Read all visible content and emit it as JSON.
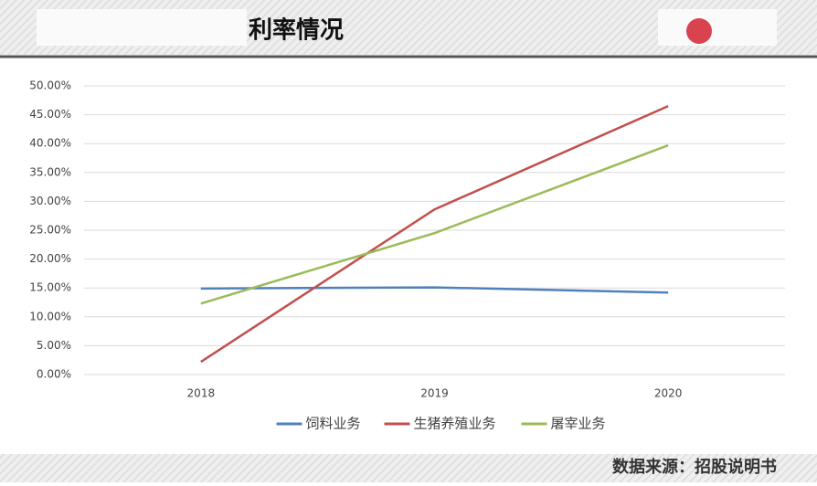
{
  "chart_data": {
    "type": "line",
    "title": "利率情况",
    "source": "数据来源：招股说明书",
    "categories": [
      "2018",
      "2019",
      "2020"
    ],
    "series": [
      {
        "name": "饲料业务",
        "color": "#4f81bd",
        "values": [
          14.9,
          15.1,
          14.2
        ]
      },
      {
        "name": "生猪养殖业务",
        "color": "#c0504d",
        "values": [
          2.2,
          28.6,
          46.5
        ]
      },
      {
        "name": "屠宰业务",
        "color": "#9bbb59",
        "values": [
          12.3,
          24.5,
          39.7
        ]
      }
    ],
    "ylim": [
      0,
      50
    ],
    "yticks": [
      {
        "value": 0,
        "label": "0.00%"
      },
      {
        "value": 5,
        "label": "5.00%"
      },
      {
        "value": 10,
        "label": "10.00%"
      },
      {
        "value": 15,
        "label": "15.00%"
      },
      {
        "value": 20,
        "label": "20.00%"
      },
      {
        "value": 25,
        "label": "25.00%"
      },
      {
        "value": 30,
        "label": "30.00%"
      },
      {
        "value": 35,
        "label": "35.00%"
      },
      {
        "value": 40,
        "label": "40.00%"
      },
      {
        "value": 45,
        "label": "45.00%"
      },
      {
        "value": 50,
        "label": "50.00%"
      }
    ],
    "grid": true,
    "legend": "bottom"
  }
}
